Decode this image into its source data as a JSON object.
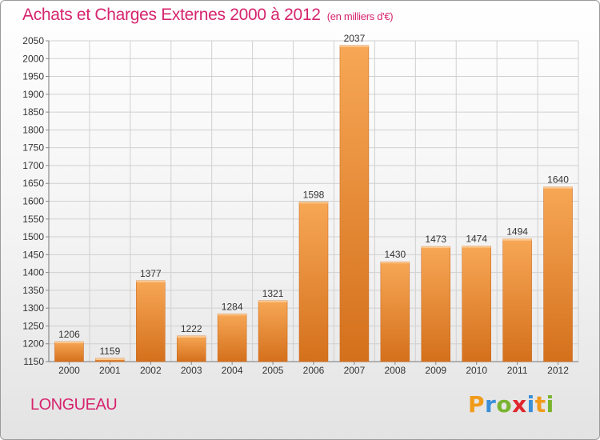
{
  "header": {
    "title": "Achats et Charges Externes 2000 à 2012",
    "unit": "(en milliers d'€)"
  },
  "footer": {
    "location": "LONGUEAU",
    "logo_text": "Proxiti"
  },
  "chart_data": {
    "type": "bar",
    "title": "Achats et Charges Externes 2000 à 2012",
    "subtitle": "(en milliers d'€)",
    "xlabel": "",
    "ylabel": "",
    "categories": [
      "2000",
      "2001",
      "2002",
      "2003",
      "2004",
      "2005",
      "2006",
      "2007",
      "2008",
      "2009",
      "2010",
      "2011",
      "2012"
    ],
    "values": [
      1206,
      1159,
      1377,
      1222,
      1284,
      1321,
      1598,
      2037,
      1430,
      1473,
      1474,
      1494,
      1640
    ],
    "ylim": [
      1150,
      2050
    ],
    "yticks": [
      1150,
      1200,
      1250,
      1300,
      1350,
      1400,
      1450,
      1500,
      1550,
      1600,
      1650,
      1700,
      1750,
      1800,
      1850,
      1900,
      1950,
      2000,
      2050
    ],
    "grid": true,
    "legend": "none",
    "colors": {
      "bar": "#f0912f",
      "bar_light": "#f5a85a",
      "bar_dark": "#d9731a",
      "grid": "#d0d0d0",
      "title": "#d6246e"
    }
  }
}
